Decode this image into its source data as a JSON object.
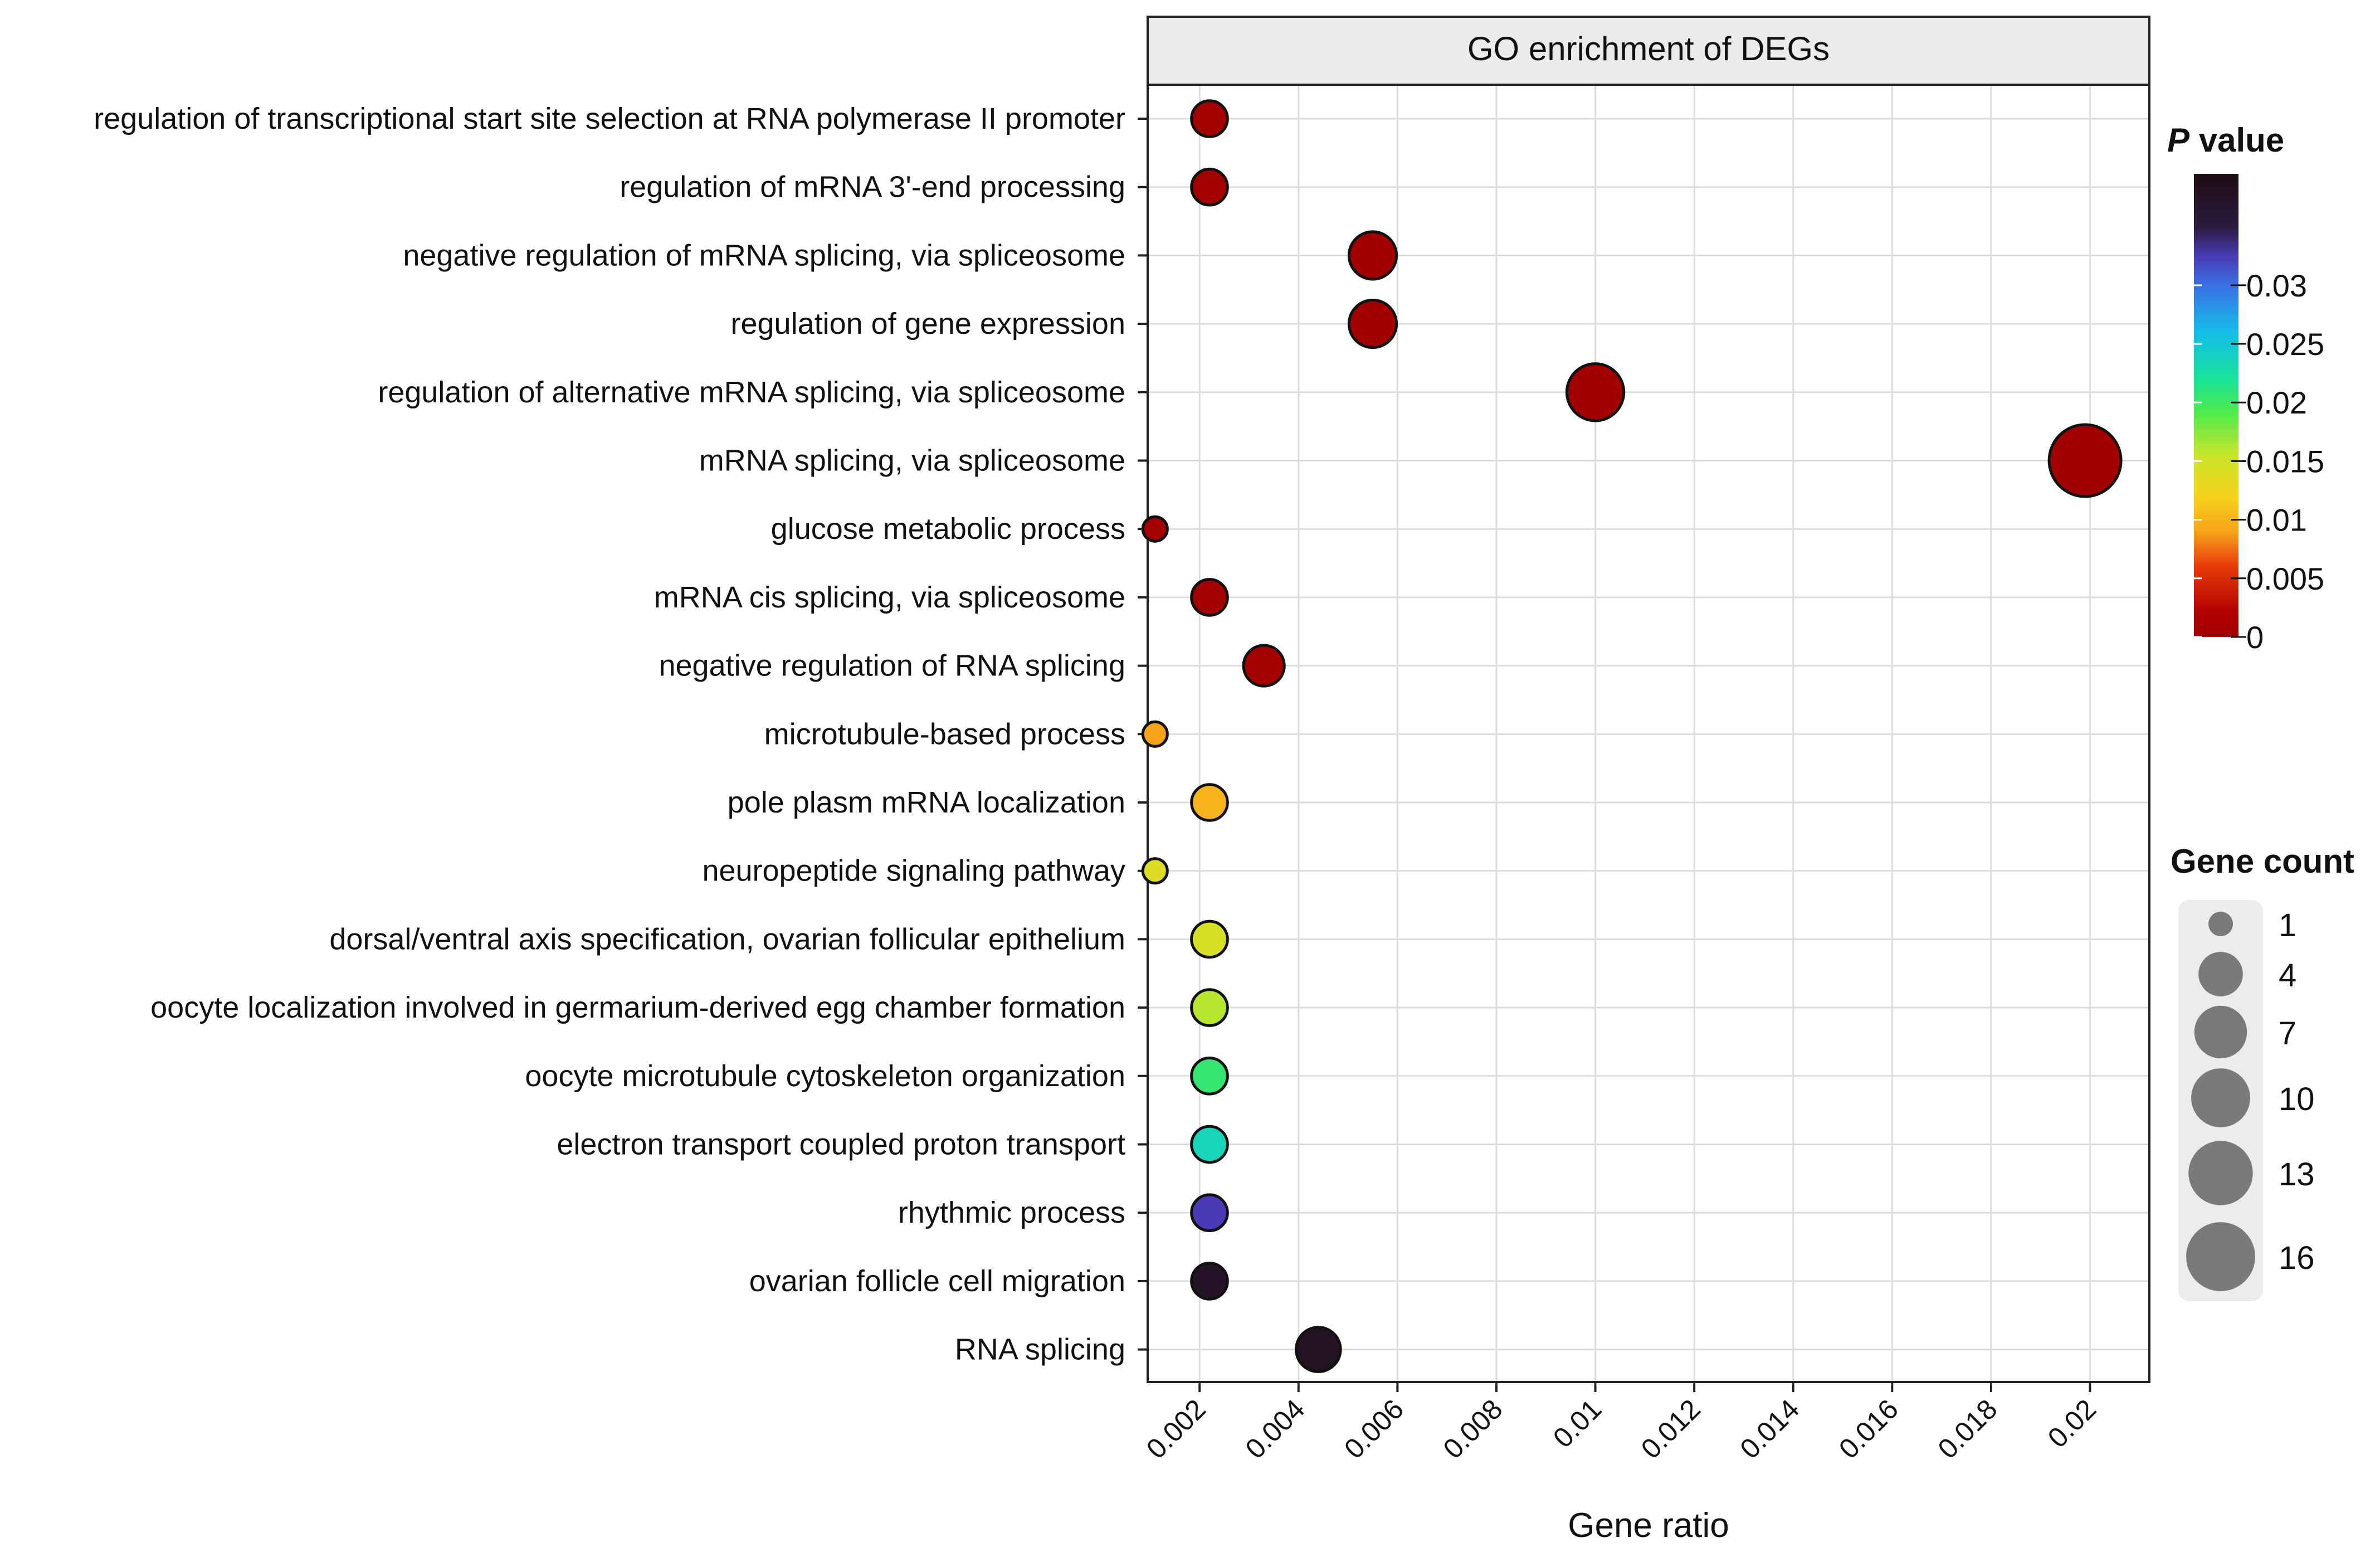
{
  "chart_data": {
    "type": "scatter",
    "title": "GO enrichment of DEGs",
    "xlabel": "Gene ratio",
    "ylabel": "",
    "xlim": [
      0.00095,
      0.0212
    ],
    "x_ticks": [
      "0.002",
      "0.004",
      "0.006",
      "0.008",
      "0.01",
      "0.012",
      "0.014",
      "0.016",
      "0.018",
      "0.02"
    ],
    "x_tick_values": [
      0.002,
      0.004,
      0.006,
      0.008,
      0.01,
      0.012,
      0.014,
      0.016,
      0.018,
      0.02
    ],
    "grid": true,
    "points": [
      {
        "term": "regulation of transcriptional start site selection at RNA polymerase II promoter",
        "gene_ratio": 0.0022,
        "p_value": 0.0002,
        "count": 2
      },
      {
        "term": "regulation of mRNA 3'-end processing",
        "gene_ratio": 0.0022,
        "p_value": 0.0002,
        "count": 2
      },
      {
        "term": "negative regulation of mRNA splicing, via spliceosome",
        "gene_ratio": 0.0055,
        "p_value": 0.0001,
        "count": 5
      },
      {
        "term": "regulation of gene expression",
        "gene_ratio": 0.0055,
        "p_value": 0.0001,
        "count": 5
      },
      {
        "term": "regulation of alternative mRNA splicing, via spliceosome",
        "gene_ratio": 0.01,
        "p_value": 0.0001,
        "count": 9
      },
      {
        "term": "mRNA splicing, via spliceosome",
        "gene_ratio": 0.0199,
        "p_value": 0.0001,
        "count": 18
      },
      {
        "term": "glucose metabolic process",
        "gene_ratio": 0.0011,
        "p_value": 0.0002,
        "count": 1
      },
      {
        "term": "mRNA cis splicing, via spliceosome",
        "gene_ratio": 0.0022,
        "p_value": 0.0003,
        "count": 2
      },
      {
        "term": "negative regulation of RNA splicing",
        "gene_ratio": 0.0033,
        "p_value": 0.0005,
        "count": 3
      },
      {
        "term": "microtubule-based process",
        "gene_ratio": 0.0011,
        "p_value": 0.009,
        "count": 1
      },
      {
        "term": "pole plasm mRNA localization",
        "gene_ratio": 0.0022,
        "p_value": 0.01,
        "count": 2
      },
      {
        "term": "neuropeptide signaling pathway",
        "gene_ratio": 0.0011,
        "p_value": 0.014,
        "count": 1
      },
      {
        "term": "dorsal/ventral axis specification, ovarian follicular epithelium",
        "gene_ratio": 0.0022,
        "p_value": 0.0145,
        "count": 2
      },
      {
        "term": "oocyte localization involved in germarium-derived egg chamber formation",
        "gene_ratio": 0.0022,
        "p_value": 0.016,
        "count": 2
      },
      {
        "term": "oocyte microtubule cytoskeleton organization",
        "gene_ratio": 0.0022,
        "p_value": 0.0205,
        "count": 2
      },
      {
        "term": "electron transport coupled proton transport",
        "gene_ratio": 0.0022,
        "p_value": 0.0235,
        "count": 2
      },
      {
        "term": "rhythmic process",
        "gene_ratio": 0.0022,
        "p_value": 0.0325,
        "count": 2
      },
      {
        "term": "ovarian follicle cell migration",
        "gene_ratio": 0.0022,
        "p_value": 0.0375,
        "count": 2
      },
      {
        "term": "RNA splicing",
        "gene_ratio": 0.0044,
        "p_value": 0.038,
        "count": 4
      }
    ],
    "color_legend": {
      "title_italic": "P",
      "title_rest": "value",
      "range": [
        0,
        0.035
      ],
      "ticks": [
        "0",
        "0.005",
        "0.01",
        "0.015",
        "0.02",
        "0.025",
        "0.03"
      ],
      "tick_values": [
        0,
        0.005,
        0.01,
        0.015,
        0.02,
        0.025,
        0.03
      ],
      "gradient_stops": [
        {
          "v": 0.0,
          "color": "#a10000"
        },
        {
          "v": 0.002,
          "color": "#b00000"
        },
        {
          "v": 0.006,
          "color": "#e83a0a"
        },
        {
          "v": 0.009,
          "color": "#f8a41a"
        },
        {
          "v": 0.012,
          "color": "#f6d21c"
        },
        {
          "v": 0.0155,
          "color": "#c8e52a"
        },
        {
          "v": 0.019,
          "color": "#52ea4a"
        },
        {
          "v": 0.022,
          "color": "#18e39a"
        },
        {
          "v": 0.026,
          "color": "#15bdea"
        },
        {
          "v": 0.03,
          "color": "#3a6fe3"
        },
        {
          "v": 0.0325,
          "color": "#4a3ab5"
        },
        {
          "v": 0.035,
          "color": "#2b1a3d"
        },
        {
          "v": 0.04,
          "color": "#1e0c10"
        }
      ]
    },
    "size_legend": {
      "title": "Gene count",
      "values": [
        1,
        4,
        7,
        10,
        13,
        16
      ],
      "labels": [
        "1",
        "4",
        "7",
        "10",
        "13",
        "16"
      ]
    }
  }
}
